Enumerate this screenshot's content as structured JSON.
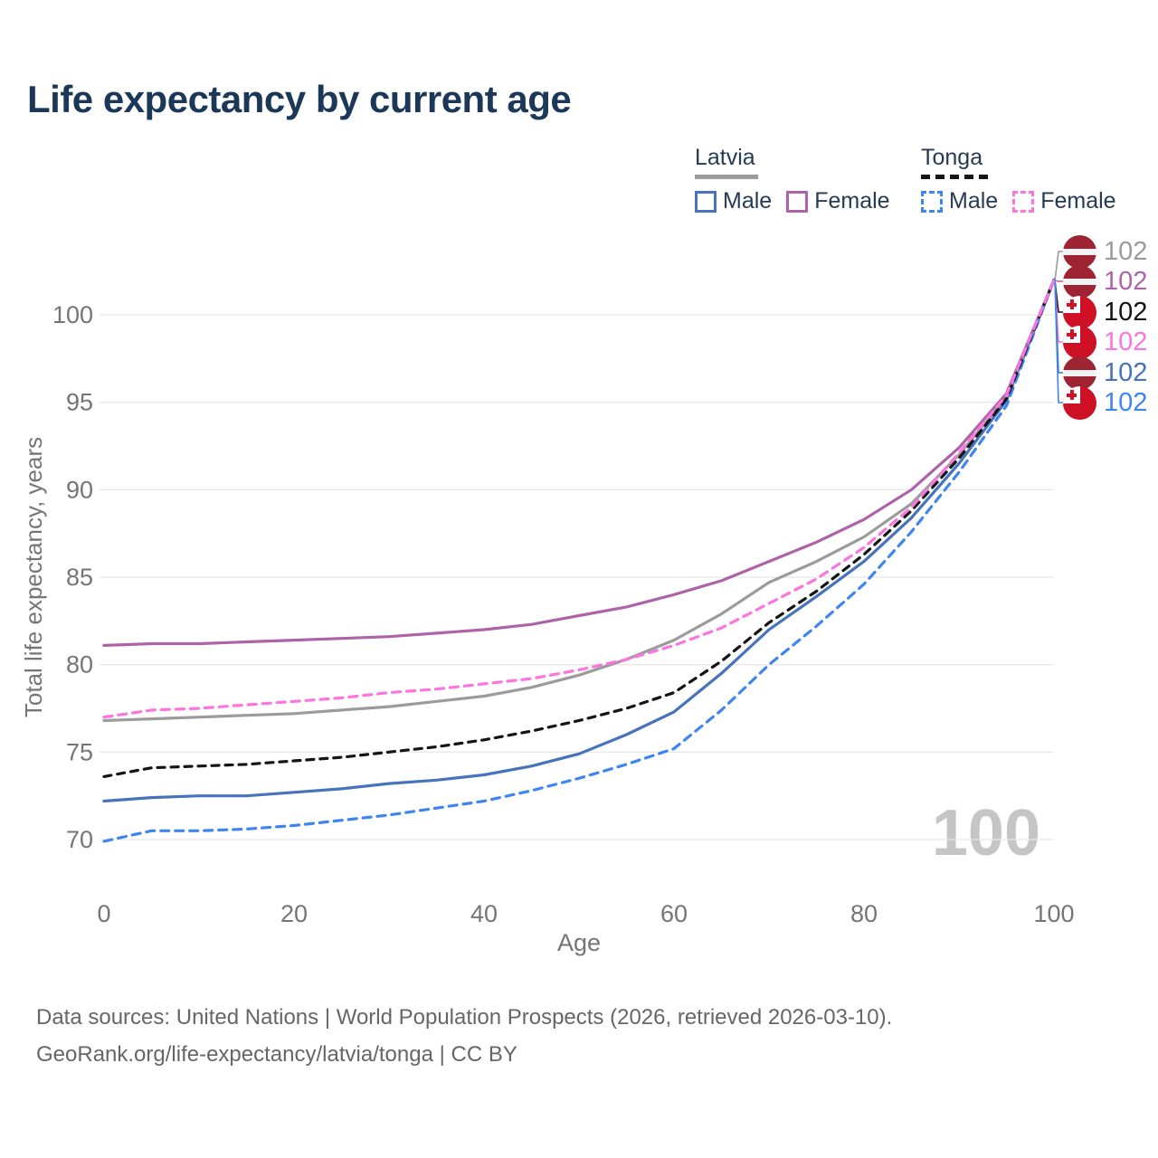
{
  "page": {
    "title": "Life expectancy by current age",
    "footer_line1": "Data sources: United Nations | World Population Prospects (2026, retrieved 2026-03-10).",
    "footer_line2": "GeoRank.org/life-expectancy/latvia/tonga | CC BY"
  },
  "legend": {
    "groups": [
      {
        "label": "Latvia",
        "underline_style": "solid",
        "underline_color": "#9b9b9b",
        "items": [
          {
            "label": "Male",
            "swatch_color": "#4673bb",
            "swatch_style": "solid"
          },
          {
            "label": "Female",
            "swatch_color": "#ae63a9",
            "swatch_style": "solid"
          }
        ]
      },
      {
        "label": "Tonga",
        "underline_style": "dashed",
        "underline_color": "#141414",
        "items": [
          {
            "label": "Male",
            "swatch_color": "#3f85f2",
            "swatch_style": "dashed"
          },
          {
            "label": "Female",
            "swatch_color": "#fb74e0",
            "swatch_style": "dashed"
          }
        ]
      }
    ]
  },
  "chart_data": {
    "type": "line",
    "title": "Life expectancy by current age",
    "xlabel": "Age",
    "ylabel": "Total life expectancy, years",
    "xlim": [
      0,
      100
    ],
    "ylim": [
      69,
      103
    ],
    "x_ticks": [
      0,
      20,
      40,
      60,
      80,
      100
    ],
    "y_ticks": [
      70,
      75,
      80,
      85,
      90,
      95,
      100
    ],
    "grid": "horizontal",
    "gridline_color": "#e8e8e8",
    "tick_label_color": "#757575",
    "age_cursor_label": "100",
    "age_cursor_color": "#c5c5c5",
    "x": [
      0,
      5,
      10,
      15,
      20,
      25,
      30,
      35,
      40,
      45,
      50,
      55,
      60,
      65,
      70,
      75,
      80,
      85,
      90,
      95,
      100
    ],
    "series": [
      {
        "id": "latvia-male",
        "name": "Latvia Male",
        "country": "Latvia",
        "sex": "male",
        "color": "#4673bb",
        "style": "solid",
        "dasharray": "",
        "values": [
          72.2,
          72.4,
          72.5,
          72.5,
          72.7,
          72.9,
          73.2,
          73.4,
          73.7,
          74.2,
          74.9,
          76.0,
          77.3,
          79.5,
          82.0,
          83.9,
          85.9,
          88.4,
          91.5,
          95.1,
          102
        ]
      },
      {
        "id": "latvia-total",
        "name": "Latvia",
        "country": "Latvia",
        "sex": "both",
        "color": "#9b9b9b",
        "style": "solid",
        "dasharray": "",
        "values": [
          76.8,
          76.9,
          77.0,
          77.1,
          77.2,
          77.4,
          77.6,
          77.9,
          78.2,
          78.7,
          79.4,
          80.3,
          81.4,
          82.9,
          84.7,
          85.9,
          87.3,
          89.2,
          92.0,
          95.3,
          102
        ]
      },
      {
        "id": "latvia-female",
        "name": "Latvia Female",
        "country": "Latvia",
        "sex": "female",
        "color": "#ae63a9",
        "style": "solid",
        "dasharray": "",
        "values": [
          81.1,
          81.2,
          81.2,
          81.3,
          81.4,
          81.5,
          81.6,
          81.8,
          82.0,
          82.3,
          82.8,
          83.3,
          84.0,
          84.8,
          85.9,
          87.0,
          88.3,
          90.0,
          92.4,
          95.5,
          102
        ]
      },
      {
        "id": "tonga-male",
        "name": "Tonga Male",
        "country": "Tonga",
        "sex": "male",
        "color": "#3f85f2",
        "style": "dashed",
        "dasharray": "9 7",
        "values": [
          69.9,
          70.5,
          70.5,
          70.6,
          70.8,
          71.1,
          71.4,
          71.8,
          72.2,
          72.8,
          73.5,
          74.3,
          75.2,
          77.4,
          80.0,
          82.2,
          84.6,
          87.6,
          91.0,
          94.8,
          102
        ]
      },
      {
        "id": "tonga-total",
        "name": "Tonga",
        "country": "Tonga",
        "sex": "both",
        "color": "#141414",
        "style": "dashed",
        "dasharray": "8 7",
        "values": [
          73.6,
          74.1,
          74.2,
          74.3,
          74.5,
          74.7,
          75.0,
          75.3,
          75.7,
          76.2,
          76.8,
          77.5,
          78.4,
          80.2,
          82.4,
          84.2,
          86.3,
          88.8,
          91.8,
          95.2,
          102
        ]
      },
      {
        "id": "tonga-female",
        "name": "Tonga Female",
        "country": "Tonga",
        "sex": "female",
        "color": "#fb74e0",
        "style": "dashed",
        "dasharray": "9 7",
        "values": [
          77.0,
          77.4,
          77.5,
          77.7,
          77.9,
          78.1,
          78.4,
          78.6,
          78.9,
          79.2,
          79.7,
          80.3,
          81.1,
          82.1,
          83.5,
          84.9,
          86.7,
          89.0,
          92.1,
          95.4,
          102
        ]
      }
    ],
    "end_labels": [
      {
        "series_id": "latvia-total",
        "flag": "latvia",
        "value": "102",
        "color": "#9b9b9b"
      },
      {
        "series_id": "latvia-female",
        "flag": "latvia",
        "value": "102",
        "color": "#ae63a9"
      },
      {
        "series_id": "tonga-total",
        "flag": "tonga",
        "value": "102",
        "color": "#141414"
      },
      {
        "series_id": "tonga-female",
        "flag": "tonga",
        "value": "102",
        "color": "#fb74e0"
      },
      {
        "series_id": "latvia-male",
        "flag": "latvia",
        "value": "102",
        "color": "#4673bb"
      },
      {
        "series_id": "tonga-male",
        "flag": "tonga",
        "value": "102",
        "color": "#3f85f2"
      }
    ]
  }
}
